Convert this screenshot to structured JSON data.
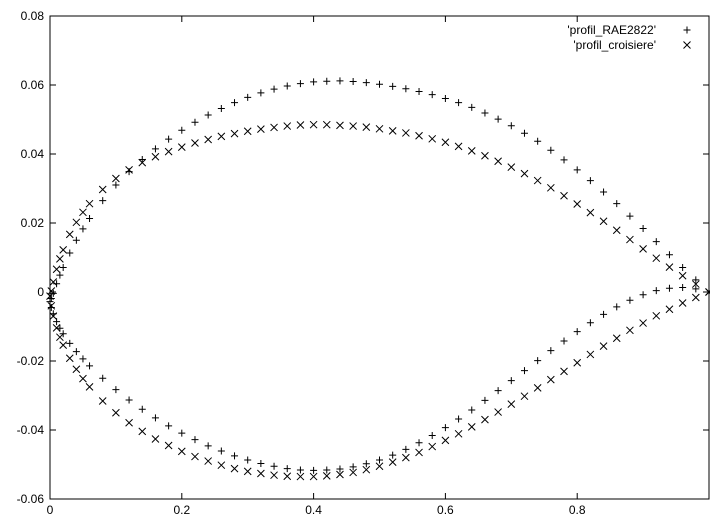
{
  "chart_data": {
    "type": "scatter",
    "title": "",
    "xlabel": "",
    "ylabel": "",
    "xlim": [
      0,
      1
    ],
    "ylim": [
      -0.06,
      0.08
    ],
    "xticks": [
      0,
      0.2,
      0.4,
      0.6,
      0.8
    ],
    "xtick_labels": [
      "0",
      "0.2",
      "0.4",
      "0.6",
      "0.8"
    ],
    "yticks": [
      -0.06,
      -0.04,
      -0.02,
      0,
      0.02,
      0.04,
      0.06,
      0.08
    ],
    "ytick_labels": [
      "-0.06",
      "-0.04",
      "-0.02",
      "0",
      "0.02",
      "0.04",
      "0.06",
      "0.08"
    ],
    "grid": false,
    "legend_position": "top-right",
    "series": [
      {
        "name": "'profil_RAE2822'",
        "marker": "plus",
        "color": "#000000",
        "x": [
          1.0,
          0.98,
          0.96,
          0.94,
          0.92,
          0.9,
          0.88,
          0.86,
          0.84,
          0.82,
          0.8,
          0.78,
          0.76,
          0.74,
          0.72,
          0.7,
          0.68,
          0.66,
          0.64,
          0.62,
          0.6,
          0.58,
          0.56,
          0.54,
          0.52,
          0.5,
          0.48,
          0.46,
          0.44,
          0.42,
          0.4,
          0.38,
          0.36,
          0.34,
          0.32,
          0.3,
          0.28,
          0.26,
          0.24,
          0.22,
          0.2,
          0.18,
          0.16,
          0.14,
          0.12,
          0.1,
          0.08,
          0.06,
          0.05,
          0.04,
          0.03,
          0.02,
          0.015,
          0.01,
          0.005,
          0.002,
          0.0,
          0.002,
          0.005,
          0.01,
          0.015,
          0.02,
          0.03,
          0.04,
          0.05,
          0.06,
          0.08,
          0.1,
          0.12,
          0.14,
          0.16,
          0.18,
          0.2,
          0.22,
          0.24,
          0.26,
          0.28,
          0.3,
          0.32,
          0.34,
          0.36,
          0.38,
          0.4,
          0.42,
          0.44,
          0.46,
          0.48,
          0.5,
          0.52,
          0.54,
          0.56,
          0.58,
          0.6,
          0.62,
          0.64,
          0.66,
          0.68,
          0.7,
          0.72,
          0.74,
          0.76,
          0.78,
          0.8,
          0.82,
          0.84,
          0.86,
          0.88,
          0.9,
          0.92,
          0.94,
          0.96,
          0.98,
          1.0
        ],
        "y": [
          0.0,
          0.0035,
          0.0071,
          0.0108,
          0.0146,
          0.0184,
          0.022,
          0.0256,
          0.029,
          0.0323,
          0.0354,
          0.0383,
          0.0411,
          0.0437,
          0.046,
          0.0482,
          0.0501,
          0.0519,
          0.0535,
          0.0549,
          0.0561,
          0.0572,
          0.0581,
          0.0589,
          0.0596,
          0.0602,
          0.0607,
          0.061,
          0.0612,
          0.0611,
          0.0609,
          0.0604,
          0.0597,
          0.0588,
          0.0577,
          0.0564,
          0.0549,
          0.0532,
          0.0513,
          0.0492,
          0.0469,
          0.0443,
          0.0415,
          0.0384,
          0.0349,
          0.031,
          0.0265,
          0.0213,
          0.0183,
          0.015,
          0.0113,
          0.0071,
          0.0049,
          0.0024,
          -0.0004,
          -0.0019,
          -0.0028,
          -0.0045,
          -0.0063,
          -0.0086,
          -0.0105,
          -0.0121,
          -0.0149,
          -0.0173,
          -0.0194,
          -0.0214,
          -0.025,
          -0.0283,
          -0.0313,
          -0.034,
          -0.0365,
          -0.0388,
          -0.0409,
          -0.0428,
          -0.0446,
          -0.0461,
          -0.0475,
          -0.0487,
          -0.0497,
          -0.0505,
          -0.0512,
          -0.0516,
          -0.0517,
          -0.0516,
          -0.0513,
          -0.0507,
          -0.0498,
          -0.0487,
          -0.0473,
          -0.0456,
          -0.0437,
          -0.0416,
          -0.0393,
          -0.0368,
          -0.0342,
          -0.0314,
          -0.0286,
          -0.0257,
          -0.0228,
          -0.0199,
          -0.017,
          -0.0142,
          -0.0115,
          -0.0089,
          -0.0065,
          -0.0043,
          -0.0024,
          -0.0008,
          0.0004,
          0.0011,
          0.0013,
          0.0009,
          0.0
        ]
      },
      {
        "name": "'profil_croisiere'",
        "marker": "cross",
        "color": "#000000",
        "x": [
          1.0,
          0.98,
          0.96,
          0.94,
          0.92,
          0.9,
          0.88,
          0.86,
          0.84,
          0.82,
          0.8,
          0.78,
          0.76,
          0.74,
          0.72,
          0.7,
          0.68,
          0.66,
          0.64,
          0.62,
          0.6,
          0.58,
          0.56,
          0.54,
          0.52,
          0.5,
          0.48,
          0.46,
          0.44,
          0.42,
          0.4,
          0.38,
          0.36,
          0.34,
          0.32,
          0.3,
          0.28,
          0.26,
          0.24,
          0.22,
          0.2,
          0.18,
          0.16,
          0.14,
          0.12,
          0.1,
          0.08,
          0.06,
          0.05,
          0.04,
          0.03,
          0.02,
          0.015,
          0.01,
          0.005,
          0.002,
          0.0,
          0.002,
          0.005,
          0.01,
          0.015,
          0.02,
          0.03,
          0.04,
          0.05,
          0.06,
          0.08,
          0.1,
          0.12,
          0.14,
          0.16,
          0.18,
          0.2,
          0.22,
          0.24,
          0.26,
          0.28,
          0.3,
          0.32,
          0.34,
          0.36,
          0.38,
          0.4,
          0.42,
          0.44,
          0.46,
          0.48,
          0.5,
          0.52,
          0.54,
          0.56,
          0.58,
          0.6,
          0.62,
          0.64,
          0.66,
          0.68,
          0.7,
          0.72,
          0.74,
          0.76,
          0.78,
          0.8,
          0.82,
          0.84,
          0.86,
          0.88,
          0.9,
          0.92,
          0.94,
          0.96,
          0.98,
          1.0
        ],
        "y": [
          0.0,
          0.0023,
          0.0047,
          0.0072,
          0.0098,
          0.0125,
          0.0152,
          0.0179,
          0.0205,
          0.023,
          0.0255,
          0.0279,
          0.0302,
          0.0323,
          0.0343,
          0.0362,
          0.0379,
          0.0395,
          0.0409,
          0.0422,
          0.0434,
          0.0444,
          0.0453,
          0.0461,
          0.0467,
          0.0473,
          0.0478,
          0.0481,
          0.0483,
          0.0485,
          0.0485,
          0.0484,
          0.0481,
          0.0477,
          0.0472,
          0.0466,
          0.0459,
          0.0451,
          0.0442,
          0.0432,
          0.042,
          0.0407,
          0.0392,
          0.0375,
          0.0354,
          0.0329,
          0.0297,
          0.0256,
          0.0231,
          0.0202,
          0.0167,
          0.0122,
          0.0096,
          0.0066,
          0.0029,
          0.0003,
          -0.0012,
          -0.004,
          -0.007,
          -0.0104,
          -0.0131,
          -0.0154,
          -0.0192,
          -0.0224,
          -0.0251,
          -0.0275,
          -0.0316,
          -0.035,
          -0.0379,
          -0.0404,
          -0.0426,
          -0.0445,
          -0.0462,
          -0.0477,
          -0.049,
          -0.0502,
          -0.0512,
          -0.052,
          -0.0526,
          -0.0531,
          -0.0534,
          -0.0535,
          -0.0535,
          -0.0533,
          -0.0529,
          -0.0523,
          -0.0515,
          -0.0505,
          -0.0493,
          -0.048,
          -0.0465,
          -0.0448,
          -0.043,
          -0.0411,
          -0.0391,
          -0.037,
          -0.0348,
          -0.0325,
          -0.0302,
          -0.0278,
          -0.0254,
          -0.023,
          -0.0205,
          -0.0181,
          -0.0157,
          -0.0134,
          -0.0111,
          -0.009,
          -0.0069,
          -0.005,
          -0.0032,
          -0.0016,
          0.0
        ]
      }
    ]
  }
}
